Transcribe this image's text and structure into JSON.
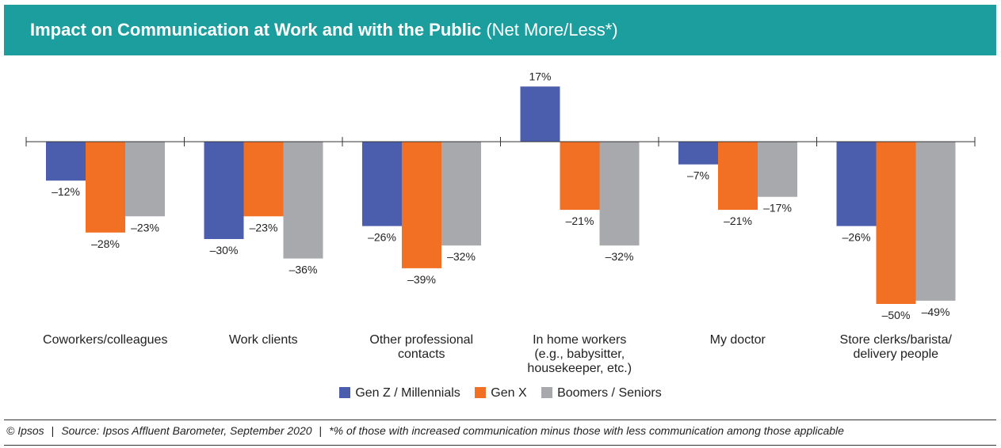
{
  "header": {
    "title": "Impact on Communication at Work and with the Public",
    "subtitle": "(Net More/Less*)"
  },
  "colors": {
    "header_bg": "#1c9e9e",
    "gen_z": "#4b5eae",
    "gen_x": "#f27024",
    "boomers": "#a8a9ad"
  },
  "chart_data": {
    "type": "bar",
    "title": "Impact on Communication at Work and with the Public (Net More/Less*)",
    "xlabel": "",
    "ylabel": "",
    "ylim": [
      -50,
      17
    ],
    "grid": false,
    "legend_position": "bottom",
    "categories": [
      [
        "Coworkers/colleagues"
      ],
      [
        "Work clients"
      ],
      [
        "Other professional",
        "contacts"
      ],
      [
        "In home workers",
        "(e.g., babysitter,",
        "housekeeper, etc.)"
      ],
      [
        "My doctor"
      ],
      [
        "Store clerks/barista/",
        "delivery people"
      ]
    ],
    "series": [
      {
        "name": "Gen Z / Millennials",
        "color": "#4b5eae",
        "values": [
          -12,
          -30,
          -26,
          17,
          -7,
          -26
        ],
        "labels": [
          "–12%",
          "–30%",
          "–26%",
          "17%",
          "–7%",
          "–26%"
        ]
      },
      {
        "name": "Gen X",
        "color": "#f27024",
        "values": [
          -28,
          -23,
          -39,
          -21,
          -21,
          -50
        ],
        "labels": [
          "–28%",
          "–23%",
          "–39%",
          "–21%",
          "–21%",
          "–50%"
        ]
      },
      {
        "name": "Boomers / Seniors",
        "color": "#a8a9ad",
        "values": [
          -23,
          -36,
          -32,
          -32,
          -17,
          -49
        ],
        "labels": [
          "–23%",
          "–36%",
          "–32%",
          "–32%",
          "–17%",
          "–49%"
        ]
      }
    ]
  },
  "footer": {
    "copyright": "© Ipsos",
    "source": "Source: Ipsos Affluent Barometer, September 2020",
    "note": "*% of those with increased communication minus those with less communication among those applicable"
  }
}
